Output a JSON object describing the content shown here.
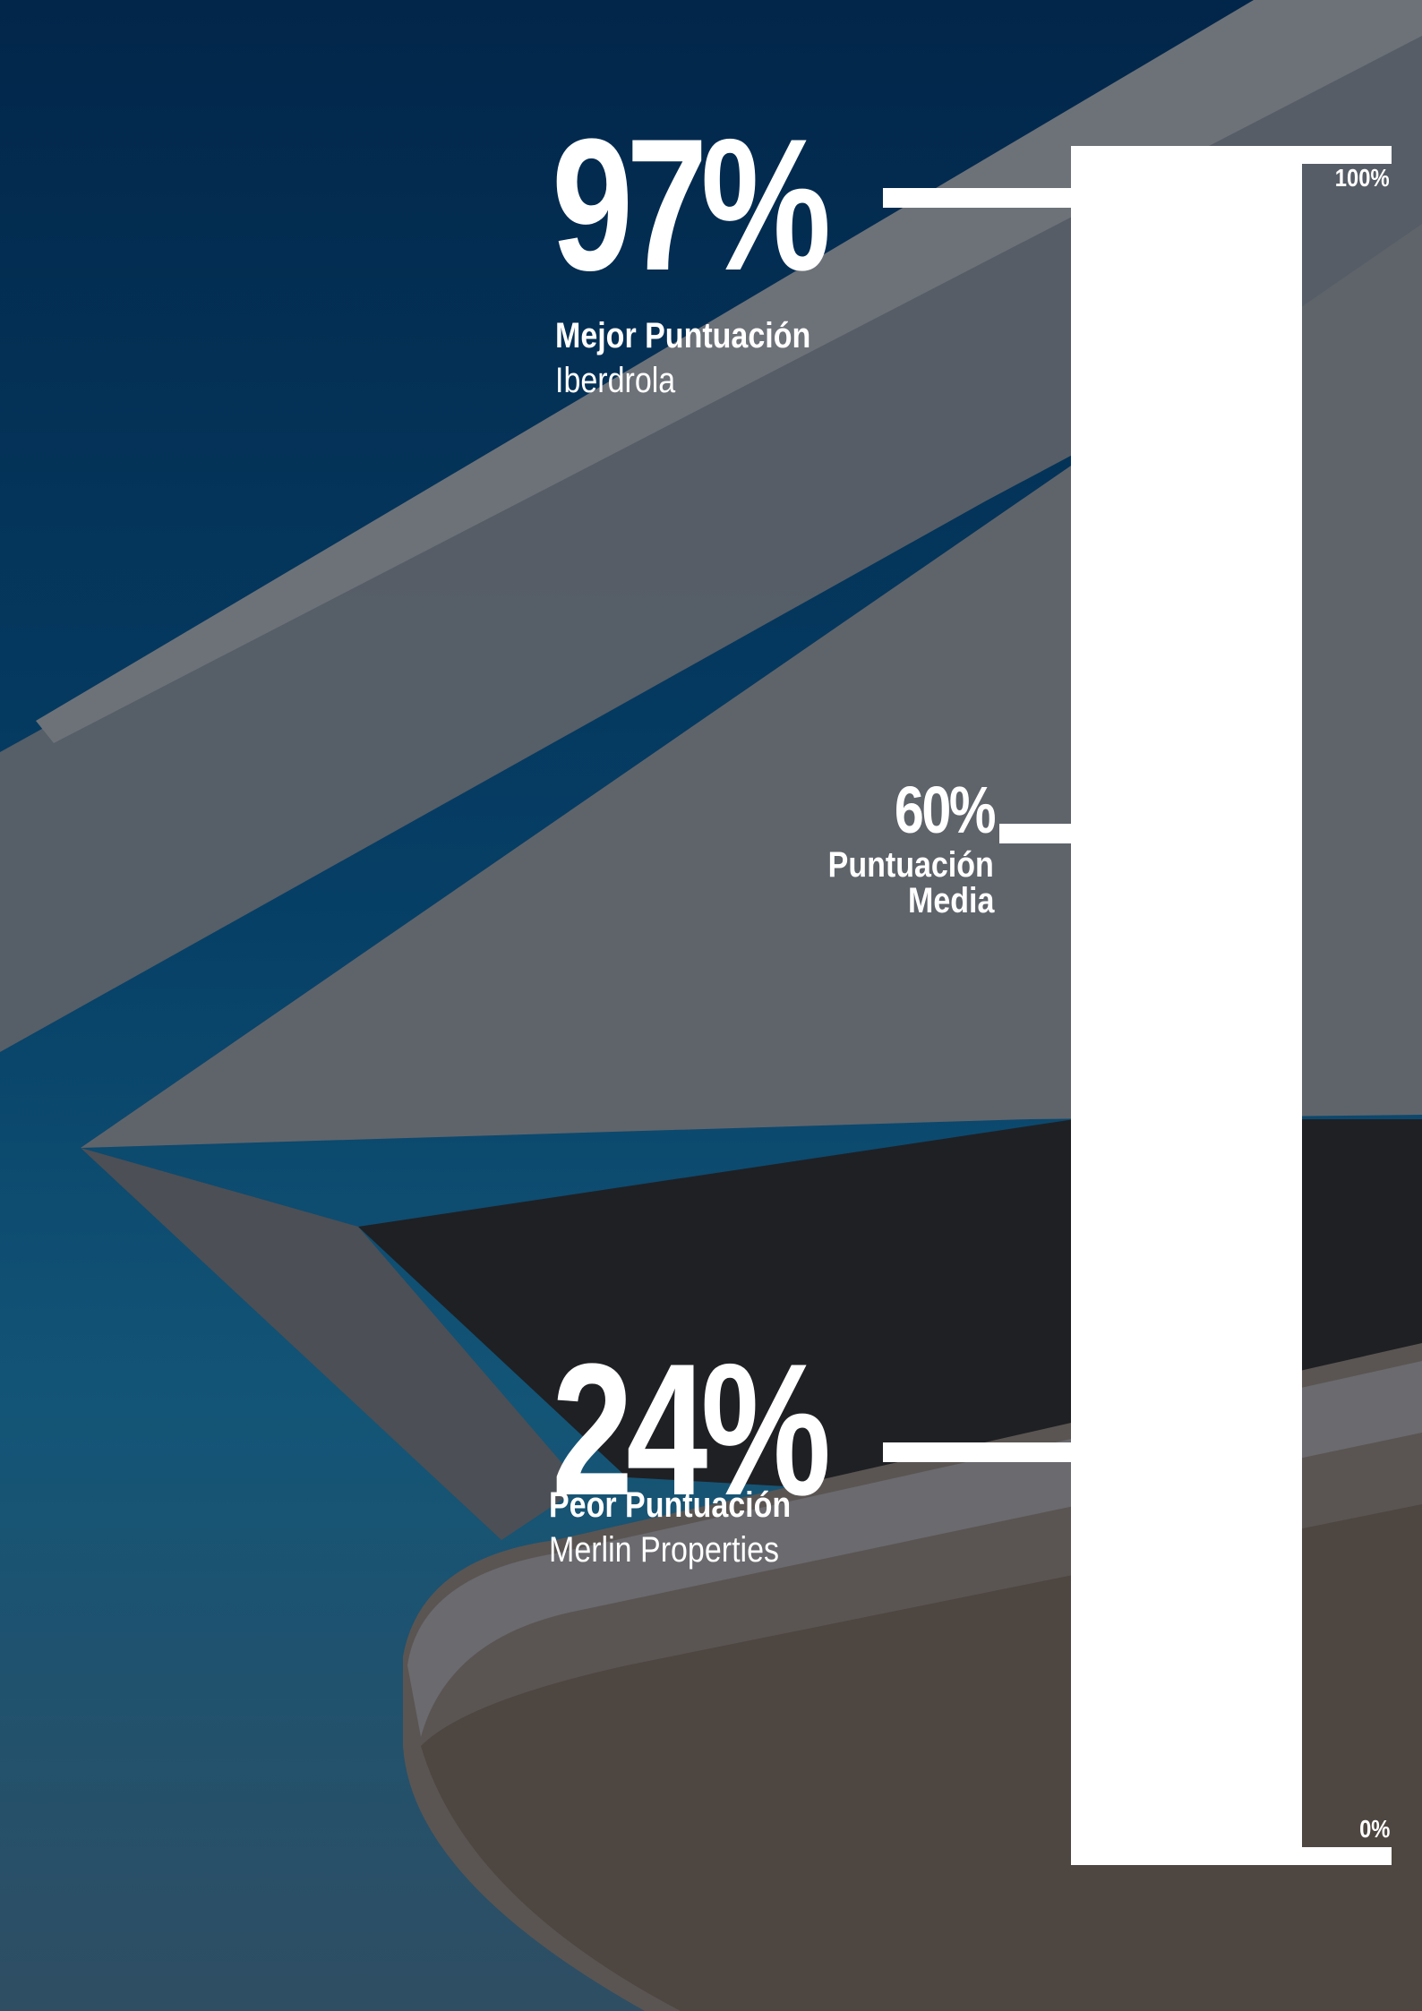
{
  "chart_data": {
    "type": "bar",
    "orientation": "vertical-scale",
    "scale": {
      "min_label": "0%",
      "max_label": "100%",
      "min": 0,
      "max": 100
    },
    "markers": [
      {
        "id": "best",
        "value": 97,
        "value_label": "97%",
        "label": "Mejor Puntuación",
        "sublabel": "Iberdrola"
      },
      {
        "id": "avg",
        "value": 60,
        "value_label": "60%",
        "label_line1": "Puntuación",
        "label_line2": "Media"
      },
      {
        "id": "worst",
        "value": 24,
        "value_label": "24%",
        "label": "Peor Puntuación",
        "sublabel": "Merlin Properties"
      }
    ],
    "colors": {
      "bar": "#ffffff",
      "text": "#ffffff",
      "background": "#063f66"
    }
  }
}
